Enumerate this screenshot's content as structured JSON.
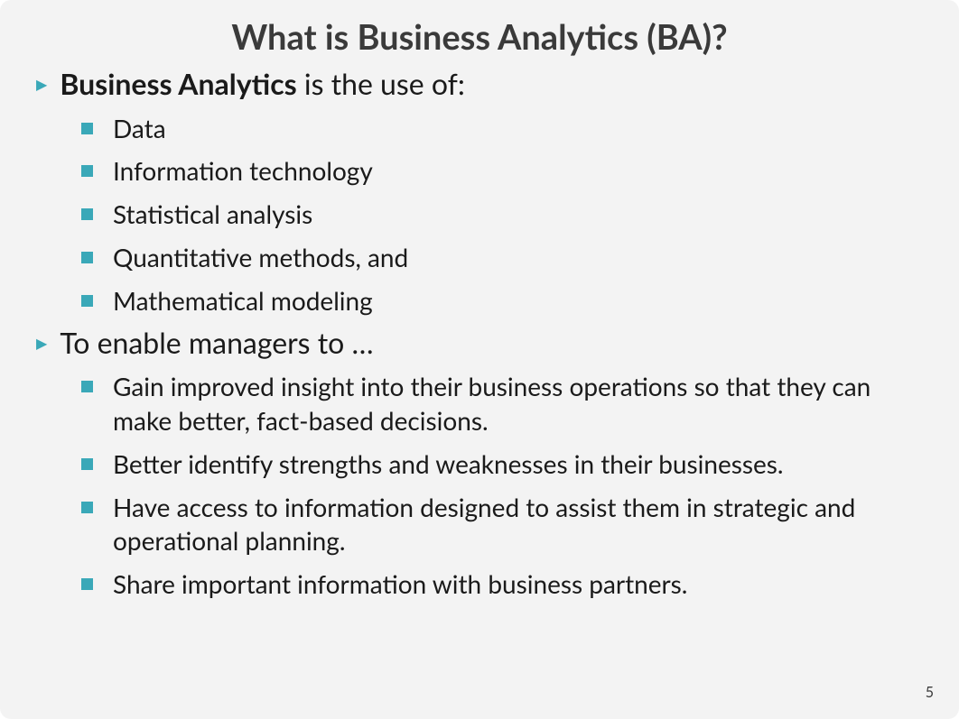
{
  "title": "What is Business Analytics (BA)?",
  "colors": {
    "background": "#f3f3f3",
    "accent": "#3aa8b8",
    "title_text": "#3a3a3a",
    "body_text": "#1a1a1a"
  },
  "typography": {
    "title_fontsize": 38,
    "level1_fontsize": 32,
    "level2_fontsize": 28,
    "font_family": "Segoe UI"
  },
  "content": [
    {
      "type": "level1",
      "bold_prefix": "Business Analytics",
      "rest": " is the use of:"
    },
    {
      "type": "level2",
      "text": "Data"
    },
    {
      "type": "level2",
      "text": "Information technology"
    },
    {
      "type": "level2",
      "text": "Statistical analysis"
    },
    {
      "type": "level2",
      "text": "Quantitative methods, and"
    },
    {
      "type": "level2",
      "text": "Mathematical modeling"
    },
    {
      "type": "level1",
      "bold_prefix": "",
      "rest": "To enable managers to …"
    },
    {
      "type": "level2",
      "text": "Gain improved insight into their business operations so that they can make better, fact-based decisions."
    },
    {
      "type": "level2",
      "text": "Better identify strengths and weaknesses in their businesses."
    },
    {
      "type": "level2",
      "text": "Have access to information designed to assist them in strategic and operational planning."
    },
    {
      "type": "level2",
      "text": "Share important information with business partners."
    }
  ],
  "page_number": "5"
}
